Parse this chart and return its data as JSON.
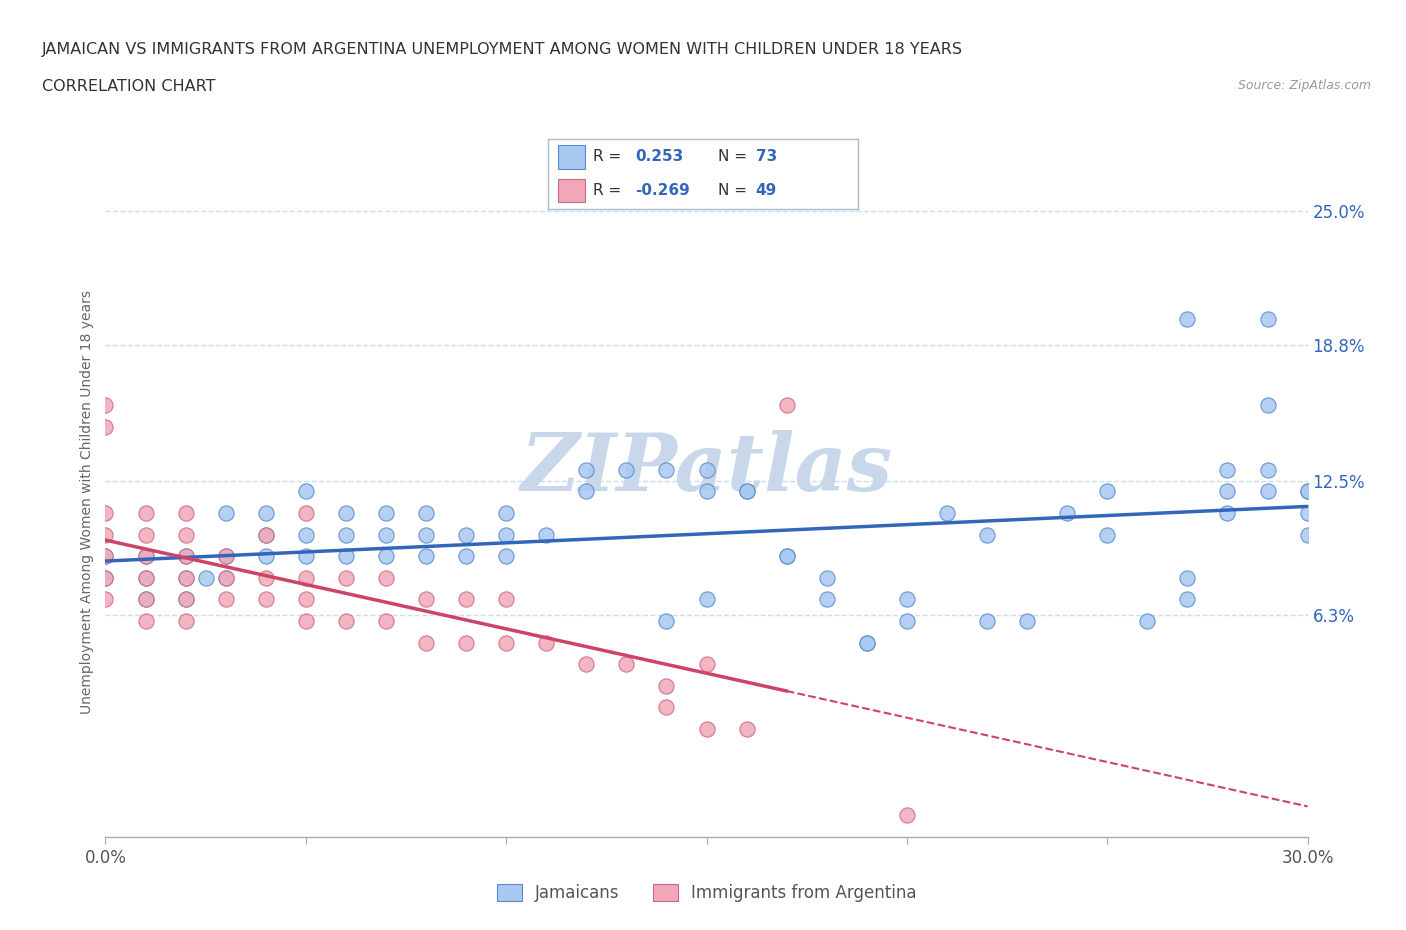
{
  "title_line1": "JAMAICAN VS IMMIGRANTS FROM ARGENTINA UNEMPLOYMENT AMONG WOMEN WITH CHILDREN UNDER 18 YEARS",
  "title_line2": "CORRELATION CHART",
  "source_text": "Source: ZipAtlas.com",
  "ylabel": "Unemployment Among Women with Children Under 18 years",
  "xlim": [
    0.0,
    0.3
  ],
  "ylim": [
    -0.04,
    0.27
  ],
  "ytick_values": [
    0.063,
    0.125,
    0.188,
    0.25
  ],
  "ytick_labels": [
    "6.3%",
    "12.5%",
    "18.8%",
    "25.0%"
  ],
  "blue_fill": "#a8c8f0",
  "blue_edge": "#5588cc",
  "pink_fill": "#f0a8b8",
  "pink_edge": "#cc6688",
  "blue_line_color": "#3366bb",
  "pink_line_color": "#cc4466",
  "R_blue": 0.253,
  "N_blue": 73,
  "R_pink": -0.269,
  "N_pink": 49,
  "watermark": "ZIPatlas",
  "watermark_color": "#c8d8ea",
  "background_color": "#ffffff",
  "grid_color": "#ccddee",
  "jamaicans_x": [
    0.0,
    0.0,
    0.01,
    0.01,
    0.01,
    0.02,
    0.02,
    0.02,
    0.025,
    0.03,
    0.03,
    0.03,
    0.04,
    0.04,
    0.04,
    0.05,
    0.05,
    0.05,
    0.06,
    0.06,
    0.06,
    0.07,
    0.07,
    0.07,
    0.08,
    0.08,
    0.08,
    0.09,
    0.09,
    0.1,
    0.1,
    0.1,
    0.11,
    0.12,
    0.12,
    0.13,
    0.14,
    0.15,
    0.15,
    0.16,
    0.17,
    0.18,
    0.18,
    0.19,
    0.2,
    0.21,
    0.22,
    0.23,
    0.24,
    0.25,
    0.26,
    0.27,
    0.27,
    0.28,
    0.28,
    0.29,
    0.29,
    0.29,
    0.3,
    0.3,
    0.3,
    0.14,
    0.15,
    0.16,
    0.17,
    0.19,
    0.2,
    0.22,
    0.25,
    0.27,
    0.28,
    0.29,
    0.3
  ],
  "jamaicans_y": [
    0.08,
    0.09,
    0.07,
    0.08,
    0.09,
    0.07,
    0.08,
    0.09,
    0.08,
    0.08,
    0.09,
    0.11,
    0.09,
    0.1,
    0.11,
    0.09,
    0.1,
    0.12,
    0.09,
    0.1,
    0.11,
    0.09,
    0.1,
    0.11,
    0.09,
    0.1,
    0.11,
    0.09,
    0.1,
    0.09,
    0.1,
    0.11,
    0.1,
    0.12,
    0.13,
    0.13,
    0.13,
    0.12,
    0.13,
    0.12,
    0.09,
    0.07,
    0.08,
    0.05,
    0.07,
    0.11,
    0.06,
    0.06,
    0.11,
    0.12,
    0.06,
    0.07,
    0.08,
    0.12,
    0.13,
    0.13,
    0.16,
    0.2,
    0.1,
    0.11,
    0.12,
    0.06,
    0.07,
    0.12,
    0.09,
    0.05,
    0.06,
    0.1,
    0.1,
    0.2,
    0.11,
    0.12,
    0.12
  ],
  "argentina_x": [
    0.0,
    0.0,
    0.0,
    0.0,
    0.0,
    0.0,
    0.0,
    0.01,
    0.01,
    0.01,
    0.01,
    0.01,
    0.01,
    0.02,
    0.02,
    0.02,
    0.02,
    0.02,
    0.02,
    0.03,
    0.03,
    0.03,
    0.04,
    0.04,
    0.04,
    0.05,
    0.05,
    0.05,
    0.05,
    0.06,
    0.06,
    0.07,
    0.07,
    0.08,
    0.08,
    0.09,
    0.09,
    0.1,
    0.1,
    0.11,
    0.12,
    0.13,
    0.14,
    0.15,
    0.16,
    0.17,
    0.15,
    0.14,
    0.2
  ],
  "argentina_y": [
    0.07,
    0.08,
    0.09,
    0.1,
    0.11,
    0.15,
    0.16,
    0.06,
    0.07,
    0.08,
    0.09,
    0.1,
    0.11,
    0.06,
    0.07,
    0.08,
    0.09,
    0.1,
    0.11,
    0.07,
    0.08,
    0.09,
    0.07,
    0.08,
    0.1,
    0.06,
    0.07,
    0.08,
    0.11,
    0.06,
    0.08,
    0.06,
    0.08,
    0.05,
    0.07,
    0.05,
    0.07,
    0.05,
    0.07,
    0.05,
    0.04,
    0.04,
    0.03,
    0.01,
    0.01,
    0.16,
    0.04,
    0.02,
    -0.03
  ]
}
